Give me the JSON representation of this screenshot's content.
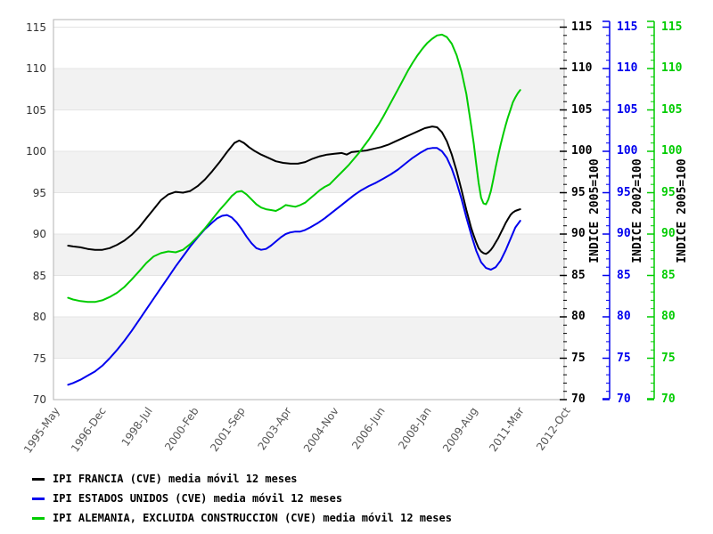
{
  "chart_data": {
    "type": "line",
    "title": "",
    "grid": "horizontal bands, alternating shaded stripes every 5 units",
    "legend_position": "bottom-left",
    "x_axis": {
      "unit": "months since 1995-May",
      "total_months": 209,
      "tick_months": [
        0,
        19,
        38,
        57,
        76,
        95,
        114,
        133,
        152,
        171,
        190,
        209
      ],
      "tick_labels": [
        "1995-May",
        "1996-Dec",
        "1998-Jul",
        "2000-Feb",
        "2001-Sep",
        "2003-Apr",
        "2004-Nov",
        "2006-Jun",
        "2008-Jan",
        "2009-Aug",
        "2011-Mar",
        "2012-Oct"
      ]
    },
    "y_axis_left": {
      "min": 70,
      "max": 115,
      "step": 5,
      "ticks": [
        70,
        75,
        80,
        85,
        90,
        95,
        100,
        105,
        110,
        115
      ]
    },
    "right_axes": [
      {
        "title": "INDICE 2005=100",
        "color": "#000000",
        "ticks": [
          70,
          75,
          80,
          85,
          90,
          95,
          100,
          105,
          110,
          115
        ]
      },
      {
        "title": "INDICE 2002=100",
        "color": "#0000ee",
        "ticks": [
          70,
          75,
          80,
          85,
          90,
          95,
          100,
          105,
          110,
          115
        ]
      },
      {
        "title": "INDICE 2005=100",
        "color": "#00cc00",
        "ticks": [
          70,
          75,
          80,
          85,
          90,
          95,
          100,
          105,
          110,
          115
        ]
      }
    ],
    "series": [
      {
        "name": "IPI FRANCIA (CVE) media móvil 12 meses",
        "color": "#000000",
        "points": [
          [
            6,
            88.6
          ],
          [
            8,
            88.5
          ],
          [
            11,
            88.4
          ],
          [
            14,
            88.2
          ],
          [
            17,
            88.1
          ],
          [
            20,
            88.1
          ],
          [
            23,
            88.3
          ],
          [
            26,
            88.7
          ],
          [
            29,
            89.2
          ],
          [
            32,
            89.9
          ],
          [
            35,
            90.8
          ],
          [
            38,
            91.9
          ],
          [
            41,
            93.0
          ],
          [
            44,
            94.1
          ],
          [
            47,
            94.8
          ],
          [
            50,
            95.1
          ],
          [
            53,
            95.0
          ],
          [
            56,
            95.2
          ],
          [
            59,
            95.8
          ],
          [
            62,
            96.6
          ],
          [
            65,
            97.6
          ],
          [
            68,
            98.7
          ],
          [
            71,
            99.9
          ],
          [
            74,
            101.0
          ],
          [
            76,
            101.3
          ],
          [
            78,
            101.0
          ],
          [
            80,
            100.5
          ],
          [
            82,
            100.1
          ],
          [
            85,
            99.6
          ],
          [
            88,
            99.2
          ],
          [
            91,
            98.8
          ],
          [
            94,
            98.6
          ],
          [
            97,
            98.5
          ],
          [
            100,
            98.5
          ],
          [
            103,
            98.7
          ],
          [
            106,
            99.1
          ],
          [
            109,
            99.4
          ],
          [
            112,
            99.6
          ],
          [
            115,
            99.7
          ],
          [
            118,
            99.8
          ],
          [
            120,
            99.6
          ],
          [
            122,
            99.9
          ],
          [
            125,
            100.0
          ],
          [
            128,
            100.1
          ],
          [
            131,
            100.3
          ],
          [
            134,
            100.5
          ],
          [
            137,
            100.8
          ],
          [
            140,
            101.2
          ],
          [
            143,
            101.6
          ],
          [
            146,
            102.0
          ],
          [
            149,
            102.4
          ],
          [
            152,
            102.8
          ],
          [
            155,
            103.0
          ],
          [
            157,
            102.9
          ],
          [
            159,
            102.3
          ],
          [
            161,
            101.2
          ],
          [
            163,
            99.6
          ],
          [
            165,
            97.6
          ],
          [
            167,
            95.3
          ],
          [
            169,
            92.9
          ],
          [
            171,
            90.7
          ],
          [
            172,
            89.8
          ],
          [
            173,
            89.0
          ],
          [
            174,
            88.3
          ],
          [
            175,
            87.9
          ],
          [
            176,
            87.7
          ],
          [
            177,
            87.6
          ],
          [
            178,
            87.8
          ],
          [
            179,
            88.1
          ],
          [
            180,
            88.5
          ],
          [
            181,
            89.0
          ],
          [
            182,
            89.5
          ],
          [
            183,
            90.1
          ],
          [
            184,
            90.7
          ],
          [
            185,
            91.3
          ],
          [
            186,
            91.8
          ],
          [
            187,
            92.3
          ],
          [
            188,
            92.6
          ],
          [
            189,
            92.8
          ],
          [
            190,
            92.9
          ],
          [
            191,
            93.0
          ]
        ]
      },
      {
        "name": "IPI ESTADOS UNIDOS (CVE) media móvil 12 meses",
        "color": "#0000ee",
        "points": [
          [
            6,
            71.8
          ],
          [
            8,
            72.0
          ],
          [
            11,
            72.4
          ],
          [
            14,
            72.9
          ],
          [
            17,
            73.4
          ],
          [
            20,
            74.1
          ],
          [
            23,
            75.0
          ],
          [
            26,
            76.0
          ],
          [
            29,
            77.1
          ],
          [
            32,
            78.3
          ],
          [
            35,
            79.6
          ],
          [
            38,
            80.9
          ],
          [
            41,
            82.2
          ],
          [
            44,
            83.5
          ],
          [
            47,
            84.8
          ],
          [
            50,
            86.1
          ],
          [
            53,
            87.3
          ],
          [
            56,
            88.5
          ],
          [
            59,
            89.6
          ],
          [
            62,
            90.6
          ],
          [
            65,
            91.4
          ],
          [
            67,
            91.9
          ],
          [
            69,
            92.2
          ],
          [
            71,
            92.3
          ],
          [
            73,
            92.0
          ],
          [
            75,
            91.4
          ],
          [
            77,
            90.6
          ],
          [
            79,
            89.7
          ],
          [
            81,
            88.9
          ],
          [
            83,
            88.3
          ],
          [
            85,
            88.1
          ],
          [
            87,
            88.2
          ],
          [
            89,
            88.6
          ],
          [
            91,
            89.1
          ],
          [
            93,
            89.6
          ],
          [
            95,
            90.0
          ],
          [
            97,
            90.2
          ],
          [
            99,
            90.3
          ],
          [
            101,
            90.3
          ],
          [
            103,
            90.5
          ],
          [
            105,
            90.8
          ],
          [
            108,
            91.3
          ],
          [
            111,
            91.9
          ],
          [
            114,
            92.6
          ],
          [
            117,
            93.3
          ],
          [
            120,
            94.0
          ],
          [
            123,
            94.7
          ],
          [
            126,
            95.3
          ],
          [
            129,
            95.8
          ],
          [
            132,
            96.2
          ],
          [
            135,
            96.7
          ],
          [
            138,
            97.2
          ],
          [
            141,
            97.8
          ],
          [
            144,
            98.5
          ],
          [
            147,
            99.2
          ],
          [
            150,
            99.8
          ],
          [
            153,
            100.3
          ],
          [
            155,
            100.4
          ],
          [
            157,
            100.4
          ],
          [
            159,
            100.0
          ],
          [
            161,
            99.2
          ],
          [
            163,
            97.9
          ],
          [
            165,
            96.2
          ],
          [
            167,
            94.2
          ],
          [
            169,
            92.0
          ],
          [
            171,
            89.9
          ],
          [
            173,
            88.0
          ],
          [
            175,
            86.6
          ],
          [
            177,
            85.9
          ],
          [
            179,
            85.7
          ],
          [
            181,
            86.0
          ],
          [
            183,
            86.8
          ],
          [
            185,
            88.0
          ],
          [
            187,
            89.4
          ],
          [
            189,
            90.8
          ],
          [
            191,
            91.6
          ]
        ]
      },
      {
        "name": "IPI ALEMANIA, EXCLUIDA CONSTRUCCION (CVE) media móvil 12 meses",
        "color": "#00cc00",
        "points": [
          [
            6,
            82.3
          ],
          [
            8,
            82.1
          ],
          [
            11,
            81.9
          ],
          [
            14,
            81.8
          ],
          [
            17,
            81.8
          ],
          [
            20,
            82.0
          ],
          [
            23,
            82.4
          ],
          [
            26,
            82.9
          ],
          [
            29,
            83.6
          ],
          [
            32,
            84.5
          ],
          [
            35,
            85.5
          ],
          [
            38,
            86.5
          ],
          [
            41,
            87.3
          ],
          [
            44,
            87.7
          ],
          [
            47,
            87.9
          ],
          [
            50,
            87.8
          ],
          [
            53,
            88.1
          ],
          [
            56,
            88.8
          ],
          [
            59,
            89.7
          ],
          [
            62,
            90.7
          ],
          [
            65,
            91.8
          ],
          [
            68,
            92.9
          ],
          [
            71,
            93.9
          ],
          [
            73,
            94.6
          ],
          [
            75,
            95.1
          ],
          [
            77,
            95.2
          ],
          [
            79,
            94.8
          ],
          [
            81,
            94.2
          ],
          [
            83,
            93.6
          ],
          [
            85,
            93.2
          ],
          [
            87,
            93.0
          ],
          [
            89,
            92.9
          ],
          [
            91,
            92.8
          ],
          [
            93,
            93.1
          ],
          [
            95,
            93.5
          ],
          [
            97,
            93.4
          ],
          [
            99,
            93.3
          ],
          [
            101,
            93.5
          ],
          [
            103,
            93.8
          ],
          [
            105,
            94.3
          ],
          [
            107,
            94.8
          ],
          [
            109,
            95.3
          ],
          [
            111,
            95.7
          ],
          [
            113,
            96.0
          ],
          [
            115,
            96.6
          ],
          [
            117,
            97.2
          ],
          [
            119,
            97.8
          ],
          [
            121,
            98.4
          ],
          [
            123,
            99.1
          ],
          [
            125,
            99.8
          ],
          [
            127,
            100.6
          ],
          [
            129,
            101.4
          ],
          [
            131,
            102.3
          ],
          [
            133,
            103.2
          ],
          [
            135,
            104.2
          ],
          [
            137,
            105.3
          ],
          [
            139,
            106.4
          ],
          [
            141,
            107.5
          ],
          [
            143,
            108.6
          ],
          [
            145,
            109.7
          ],
          [
            147,
            110.7
          ],
          [
            149,
            111.6
          ],
          [
            151,
            112.4
          ],
          [
            153,
            113.1
          ],
          [
            155,
            113.6
          ],
          [
            157,
            114.0
          ],
          [
            159,
            114.1
          ],
          [
            161,
            113.8
          ],
          [
            163,
            113.0
          ],
          [
            165,
            111.6
          ],
          [
            167,
            109.6
          ],
          [
            169,
            106.9
          ],
          [
            171,
            103.0
          ],
          [
            172,
            100.9
          ],
          [
            173,
            98.5
          ],
          [
            174,
            96.2
          ],
          [
            175,
            94.4
          ],
          [
            176,
            93.7
          ],
          [
            177,
            93.6
          ],
          [
            178,
            94.2
          ],
          [
            179,
            95.2
          ],
          [
            180,
            96.6
          ],
          [
            181,
            98.1
          ],
          [
            182,
            99.5
          ],
          [
            183,
            100.8
          ],
          [
            184,
            102.0
          ],
          [
            185,
            103.1
          ],
          [
            186,
            104.1
          ],
          [
            187,
            105.0
          ],
          [
            188,
            105.9
          ],
          [
            189,
            106.5
          ],
          [
            190,
            107.0
          ],
          [
            191,
            107.4
          ]
        ]
      }
    ],
    "colors": {
      "band_fill": "#f2f2f2",
      "gridline": "#e4e4e4",
      "plot_border": "#b3b3b3",
      "left_tick_text": "#333333",
      "x_tick_text": "#555555"
    }
  },
  "legend": {
    "entries": [
      {
        "label": "IPI FRANCIA (CVE) media móvil 12 meses",
        "color": "#000000"
      },
      {
        "label": "IPI ESTADOS UNIDOS (CVE) media móvil 12 meses",
        "color": "#0000ee"
      },
      {
        "label": "IPI ALEMANIA, EXCLUIDA CONSTRUCCION (CVE) media móvil 12 meses",
        "color": "#00cc00"
      }
    ]
  }
}
